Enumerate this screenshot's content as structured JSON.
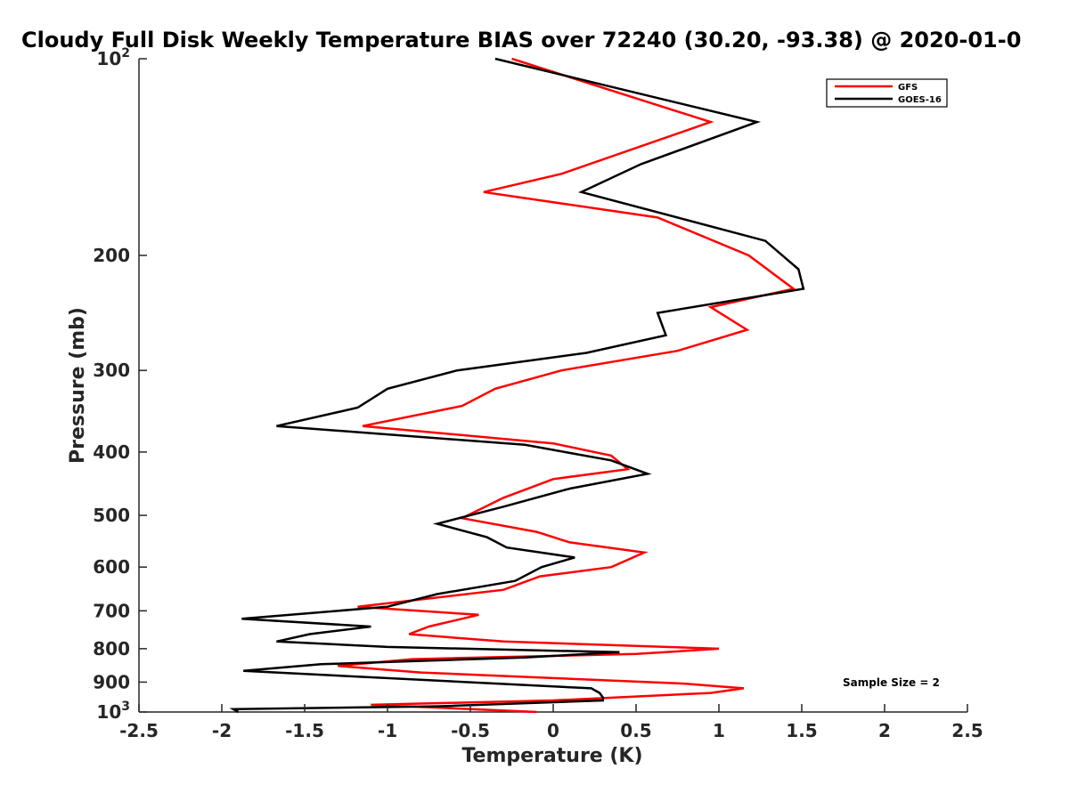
{
  "chart_data": {
    "type": "line",
    "title": "Cloudy Full Disk Weekly Temperature BIAS over 72240 (30.20, -93.38) @ 2020-01-0",
    "xlabel": "Temperature (K)",
    "ylabel": "Pressure (mb)",
    "xlim": [
      -2.5,
      2.5
    ],
    "ylim": [
      100,
      1000
    ],
    "yscale": "log",
    "y_reversed": true,
    "grid": false,
    "legend_position": "top-right",
    "x_ticks": [
      "-2.5",
      "-2",
      "-1.5",
      "-1",
      "-0.5",
      "0",
      "0.5",
      "1",
      "1.5",
      "2",
      "2.5"
    ],
    "x_tick_values": [
      -2.5,
      -2,
      -1.5,
      -1,
      -0.5,
      0,
      0.5,
      1,
      1.5,
      2,
      2.5
    ],
    "y_ticks": [
      {
        "value": 100,
        "label": "10",
        "sup": "2"
      },
      {
        "value": 200,
        "label": "200",
        "sup": ""
      },
      {
        "value": 300,
        "label": "300",
        "sup": ""
      },
      {
        "value": 400,
        "label": "400",
        "sup": ""
      },
      {
        "value": 500,
        "label": "500",
        "sup": ""
      },
      {
        "value": 600,
        "label": "600",
        "sup": ""
      },
      {
        "value": 700,
        "label": "700",
        "sup": ""
      },
      {
        "value": 800,
        "label": "800",
        "sup": ""
      },
      {
        "value": 900,
        "label": "900",
        "sup": ""
      },
      {
        "value": 1000,
        "label": "10",
        "sup": "3"
      }
    ],
    "annotation": "Sample Size = 2",
    "series": [
      {
        "name": "GFS",
        "color": "#ff0000",
        "points": [
          [
            -0.25,
            100
          ],
          [
            0.95,
            125
          ],
          [
            0.05,
            150
          ],
          [
            -0.42,
            160
          ],
          [
            0.63,
            175
          ],
          [
            1.18,
            200
          ],
          [
            1.45,
            225
          ],
          [
            0.95,
            240
          ],
          [
            1.17,
            260
          ],
          [
            0.75,
            280
          ],
          [
            0.05,
            300
          ],
          [
            -0.35,
            320
          ],
          [
            -0.55,
            340
          ],
          [
            -1.15,
            365
          ],
          [
            0.0,
            388
          ],
          [
            0.35,
            405
          ],
          [
            0.45,
            425
          ],
          [
            0.0,
            440
          ],
          [
            -0.3,
            470
          ],
          [
            -0.55,
            505
          ],
          [
            -0.1,
            530
          ],
          [
            0.1,
            550
          ],
          [
            0.55,
            570
          ],
          [
            0.35,
            600
          ],
          [
            -0.08,
            620
          ],
          [
            -0.3,
            650
          ],
          [
            -1.18,
            690
          ],
          [
            -0.45,
            710
          ],
          [
            -0.75,
            740
          ],
          [
            -0.87,
            760
          ],
          [
            -0.3,
            780
          ],
          [
            1.0,
            800
          ],
          [
            0.5,
            815
          ],
          [
            -0.85,
            830
          ],
          [
            -1.3,
            850
          ],
          [
            -0.8,
            870
          ],
          [
            0.8,
            905
          ],
          [
            1.15,
            920
          ],
          [
            0.95,
            935
          ],
          [
            0.0,
            960
          ],
          [
            -1.1,
            975
          ],
          [
            -0.1,
            1000
          ]
        ]
      },
      {
        "name": "GOES-16",
        "color": "#000000",
        "points": [
          [
            -0.35,
            100
          ],
          [
            1.23,
            125
          ],
          [
            0.53,
            145
          ],
          [
            0.17,
            160
          ],
          [
            1.28,
            190
          ],
          [
            1.48,
            210
          ],
          [
            1.51,
            225
          ],
          [
            0.63,
            245
          ],
          [
            0.68,
            265
          ],
          [
            0.2,
            282
          ],
          [
            -0.58,
            300
          ],
          [
            -1.0,
            320
          ],
          [
            -1.18,
            342
          ],
          [
            -1.67,
            365
          ],
          [
            -0.17,
            390
          ],
          [
            0.35,
            412
          ],
          [
            0.57,
            432
          ],
          [
            0.1,
            455
          ],
          [
            -0.3,
            485
          ],
          [
            -0.7,
            515
          ],
          [
            -0.4,
            540
          ],
          [
            -0.28,
            560
          ],
          [
            0.13,
            580
          ],
          [
            -0.07,
            600
          ],
          [
            -0.23,
            630
          ],
          [
            -0.7,
            660
          ],
          [
            -1.0,
            690
          ],
          [
            -1.88,
            720
          ],
          [
            -1.1,
            740
          ],
          [
            -1.47,
            760
          ],
          [
            -1.67,
            780
          ],
          [
            -1.0,
            795
          ],
          [
            0.4,
            810
          ],
          [
            -0.17,
            825
          ],
          [
            -1.4,
            845
          ],
          [
            -1.87,
            865
          ],
          [
            0.23,
            920
          ],
          [
            0.28,
            935
          ],
          [
            0.3,
            950
          ],
          [
            0.3,
            960
          ],
          [
            -0.7,
            980
          ],
          [
            -1.93,
            990
          ],
          [
            -1.9,
            1000
          ]
        ]
      }
    ]
  }
}
